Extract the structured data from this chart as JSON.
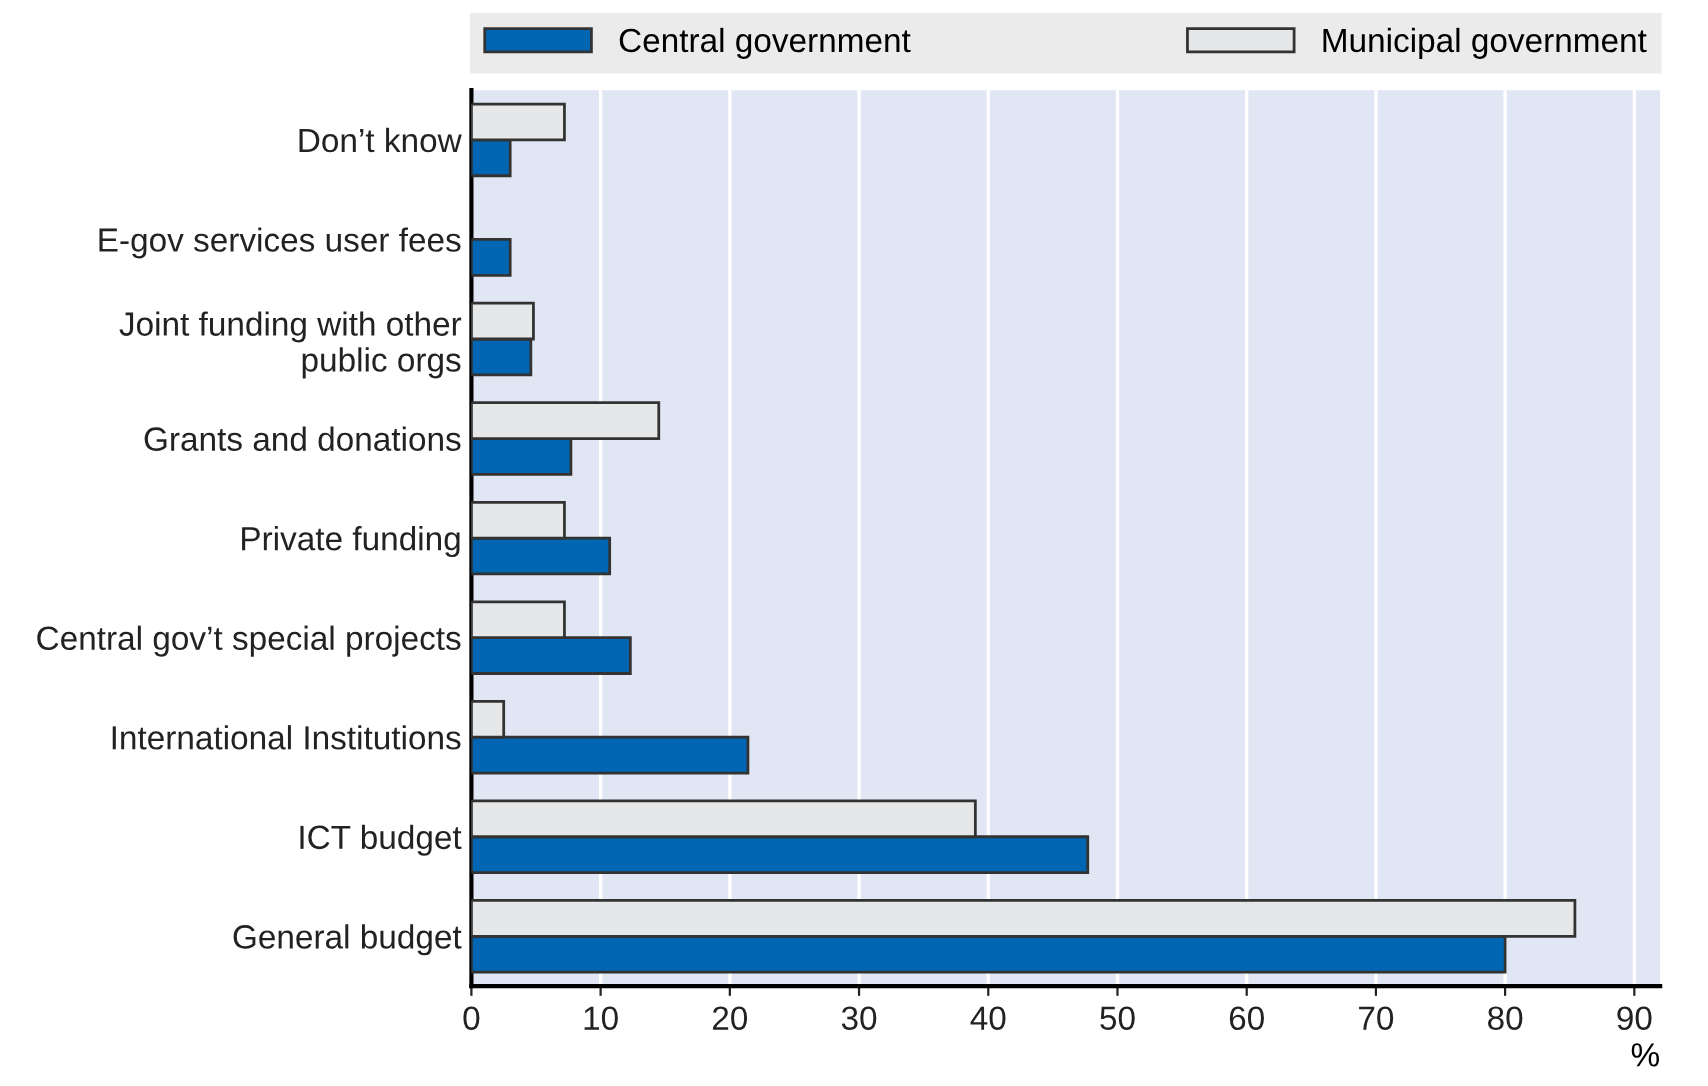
{
  "chart_data": {
    "type": "bar",
    "orientation": "horizontal",
    "xlabel": "%",
    "categories": [
      "Don’t know",
      "E-gov services user fees",
      "Joint funding with other\npublic orgs",
      "Grants and donations",
      "Private funding",
      "Central gov’t special projects",
      "International Institutions",
      "ICT budget",
      "General budget"
    ],
    "series": [
      {
        "name": "Central government",
        "color": "#0066b3",
        "values": [
          3.0,
          3.0,
          4.6,
          7.7,
          10.7,
          12.3,
          21.4,
          47.7,
          80.0
        ]
      },
      {
        "name": "Municipal government",
        "color": "#e6e7e8",
        "values": [
          7.2,
          null,
          4.8,
          14.5,
          7.2,
          7.2,
          2.5,
          39.0,
          85.4
        ]
      }
    ],
    "xlim": [
      0,
      92
    ],
    "xticks": [
      0,
      10,
      20,
      30,
      40,
      50,
      60,
      70,
      80,
      90
    ],
    "grid": "x",
    "legend": "top"
  }
}
